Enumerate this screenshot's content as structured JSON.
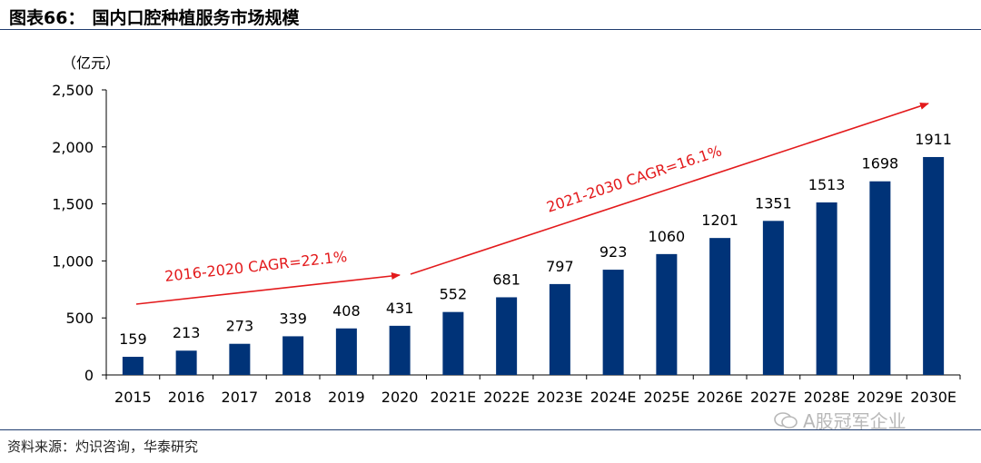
{
  "header": {
    "figure_label": "图表66：",
    "title": "国内口腔种植服务市场规模"
  },
  "colors": {
    "bar": "#003378",
    "arrow": "#e31a1c",
    "rule": "#1f3c6e"
  },
  "chart_data": {
    "type": "bar",
    "title": "国内口腔种植服务市场规模",
    "ylabel": "（亿元）",
    "xlabel": "",
    "ylim": [
      0,
      2500
    ],
    "yticks": [
      0,
      500,
      1000,
      1500,
      2000,
      2500
    ],
    "ytick_labels": [
      "0",
      "500",
      "1,000",
      "1,500",
      "2,000",
      "2,500"
    ],
    "categories": [
      "2015",
      "2016",
      "2017",
      "2018",
      "2019",
      "2020",
      "2021E",
      "2022E",
      "2023E",
      "2024E",
      "2025E",
      "2026E",
      "2027E",
      "2028E",
      "2029E",
      "2030E"
    ],
    "values": [
      159,
      213,
      273,
      339,
      408,
      431,
      552,
      681,
      797,
      923,
      1060,
      1201,
      1351,
      1513,
      1698,
      1911
    ],
    "grid": false,
    "annotations": [
      {
        "text": "2016-2020 CAGR=22.1%",
        "from_year": "2015",
        "to_year": "2020"
      },
      {
        "text": "2021-2030 CAGR=16.1%",
        "from_year": "2020",
        "to_year": "2030E"
      }
    ]
  },
  "footer": {
    "source": "资料来源：灼识咨询，华泰研究",
    "watermark": "A股冠军企业"
  }
}
